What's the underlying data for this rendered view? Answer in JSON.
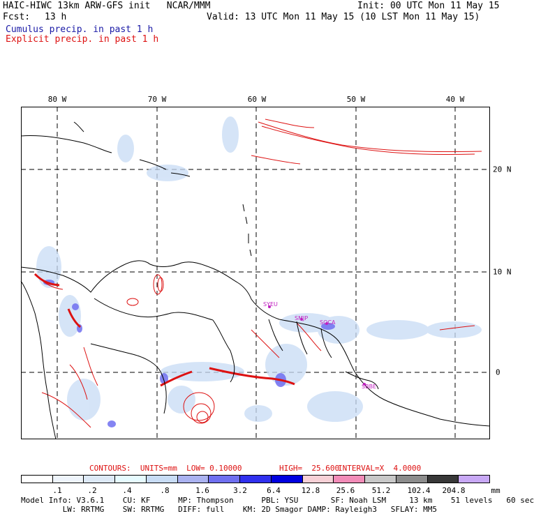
{
  "header": {
    "title_left": "HAIC-HIWC 13km ARW-GFS init   NCAR/MMM",
    "init": "Init: 00 UTC Mon 11 May 15",
    "fcst_label": "Fcst:",
    "fcst_value": "13 h",
    "valid": "Valid: 13 UTC Mon 11 May 15 (10 LST Mon 11 May 15)",
    "cumulus_label": "Cumulus precip. in past 1 h",
    "explicit_label": "Explicit precip. in past 1 h"
  },
  "map": {
    "lon_labels": [
      "80 W",
      "70 W",
      "60 W",
      "50 W",
      "40 W"
    ],
    "lat_labels": [
      "20 N",
      "10 N",
      "0"
    ],
    "stations": [
      "SYEU",
      "SMJP",
      "SOCA",
      "SBBE"
    ],
    "colors": {
      "coast": "#000000",
      "grid": "#000000",
      "explicit": "#dd1111",
      "cumulus": "#3333dd"
    }
  },
  "contours": {
    "prefix": "CONTOURS:  UNITS=mm  LOW= 0.10000",
    "high": "HIGH=  25.600",
    "interval": "INTERVAL=X  4.0000"
  },
  "colorbar": {
    "ticks": [
      ".1",
      ".2",
      ".4",
      ".8",
      "1.6",
      "3.2",
      "6.4",
      "12.8",
      "25.6",
      "51.2",
      "102.4",
      "204.8"
    ],
    "units": "mm",
    "colors": [
      "#ffffff",
      "#eef4fb",
      "#dde9f6",
      "#e6fbff",
      "#c8dcf5",
      "#aab2f0",
      "#6f6ff0",
      "#3030ee",
      "#0000e0",
      "#f7d0d6",
      "#f28cb8",
      "#c8c8c8",
      "#8c8c8c",
      "#383838",
      "#c8a8f5"
    ]
  },
  "model_info": {
    "line1": "Model Info: V3.6.1    CU: KF      MP: Thompson      PBL: YSU       SF: Noah LSM     13 km    51 levels   60 sec",
    "line2": "         LW: RRTMG    SW: RRTMG   DIFF: full    KM: 2D Smagor DAMP: Rayleigh3   SFLAY: MM5"
  }
}
